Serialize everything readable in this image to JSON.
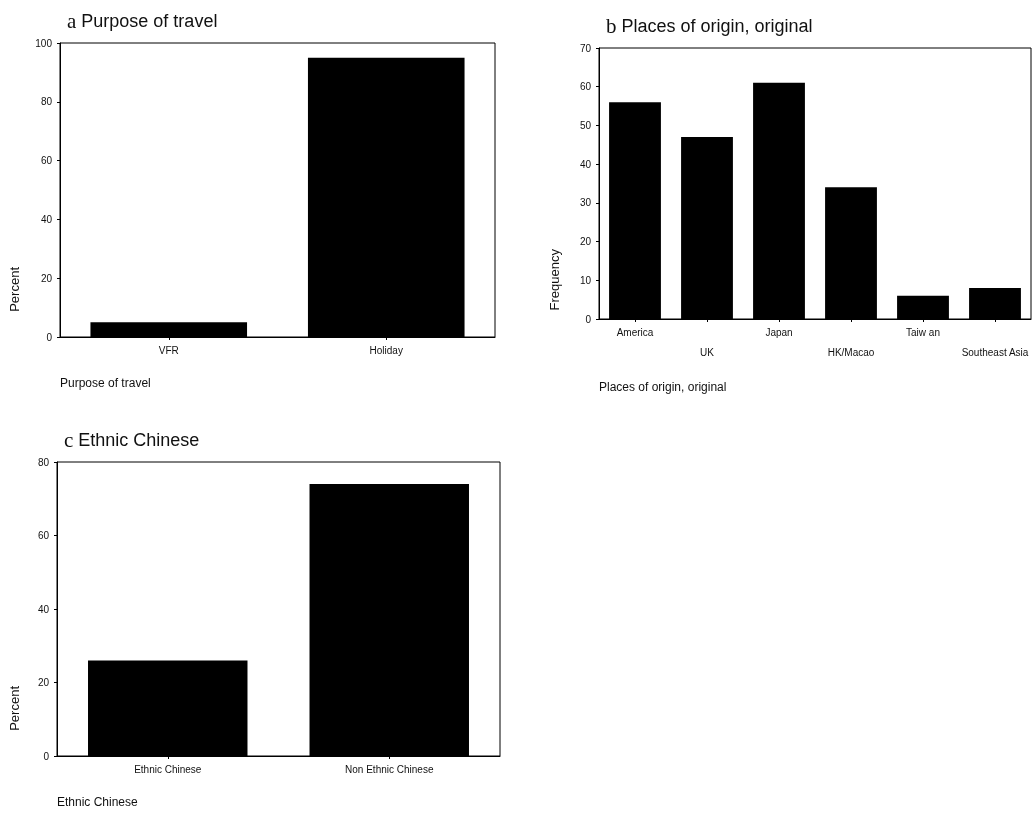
{
  "chart_data": [
    {
      "type": "bar",
      "title": "a Purpose of travel",
      "ylabel": "Percent",
      "xlabel": "Purpose of travel",
      "categories": [
        "VFR",
        "Holiday"
      ],
      "values": [
        5,
        95
      ],
      "color": "#000000",
      "ylim": [
        0,
        100
      ],
      "yticks": [
        0,
        20,
        40,
        60,
        80,
        100
      ],
      "grid": false
    },
    {
      "type": "bar",
      "title": "b Places of origin, original",
      "ylabel": "Frequency",
      "xlabel": "Places of origin, original",
      "categories": [
        "America",
        "UK",
        "Japan",
        "HK/Macao",
        "Taiw an",
        "Southeast Asia"
      ],
      "values": [
        56,
        47,
        61,
        34,
        6,
        8
      ],
      "color": "#000000",
      "ylim": [
        0,
        70
      ],
      "yticks": [
        0,
        10,
        20,
        30,
        40,
        50,
        60,
        70
      ],
      "grid": false
    },
    {
      "type": "bar",
      "title": "c Ethnic Chinese",
      "ylabel": "Percent",
      "xlabel": "Ethnic Chinese",
      "categories": [
        "Ethnic Chinese",
        "Non Ethnic Chinese"
      ],
      "values": [
        26,
        74
      ],
      "color": "#000000",
      "ylim": [
        0,
        80
      ],
      "yticks": [
        0,
        20,
        40,
        60,
        80
      ],
      "grid": false
    }
  ]
}
